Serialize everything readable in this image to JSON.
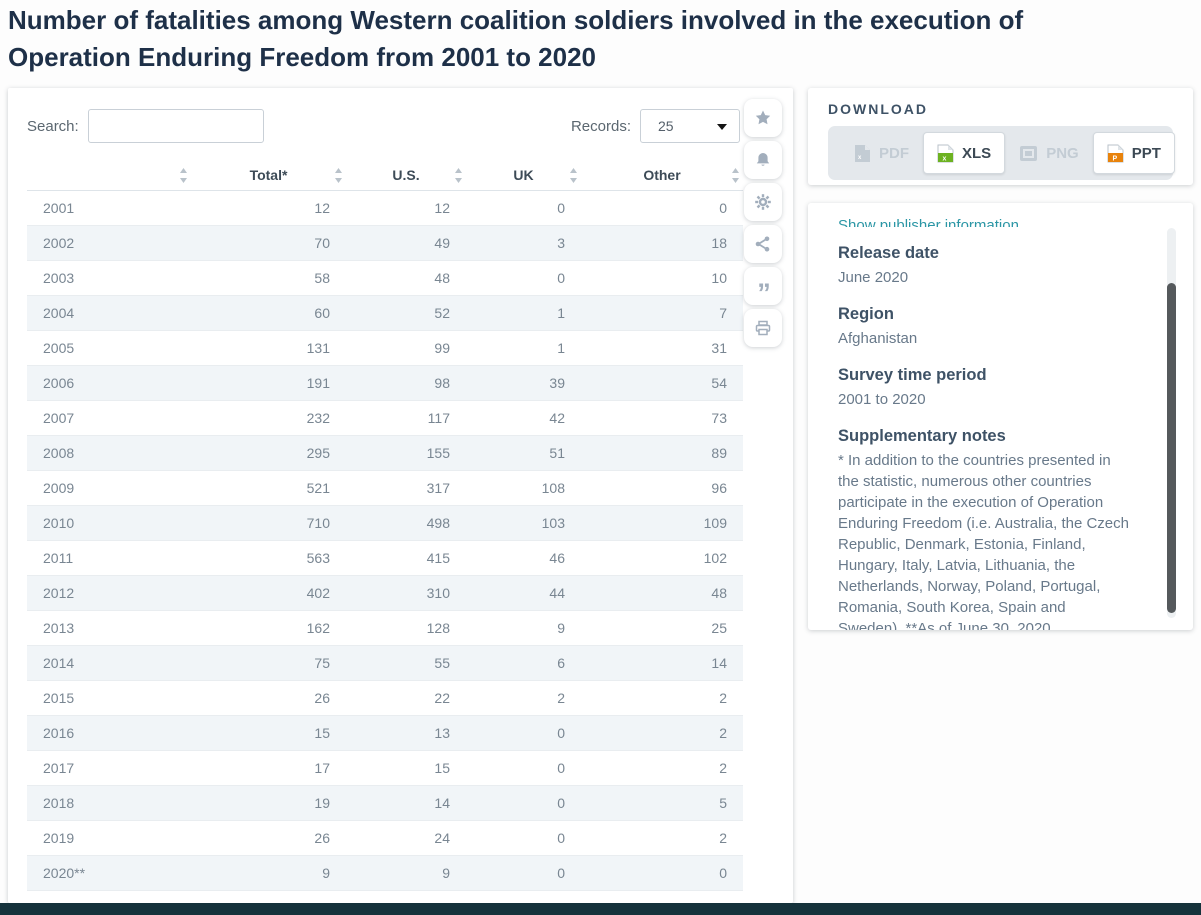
{
  "page": {
    "title": "Number of fatalities among Western coalition soldiers involved in the execution of Operation Enduring Freedom from 2001 to 2020"
  },
  "controls": {
    "search_label": "Search:",
    "search_value": "",
    "records_label": "Records:",
    "records_value": "25"
  },
  "table": {
    "columns": [
      "",
      "Total*",
      "U.S.",
      "UK",
      "Other"
    ],
    "rows": [
      {
        "year": "2001",
        "total": "12",
        "us": "12",
        "uk": "0",
        "other": "0"
      },
      {
        "year": "2002",
        "total": "70",
        "us": "49",
        "uk": "3",
        "other": "18"
      },
      {
        "year": "2003",
        "total": "58",
        "us": "48",
        "uk": "0",
        "other": "10"
      },
      {
        "year": "2004",
        "total": "60",
        "us": "52",
        "uk": "1",
        "other": "7"
      },
      {
        "year": "2005",
        "total": "131",
        "us": "99",
        "uk": "1",
        "other": "31"
      },
      {
        "year": "2006",
        "total": "191",
        "us": "98",
        "uk": "39",
        "other": "54"
      },
      {
        "year": "2007",
        "total": "232",
        "us": "117",
        "uk": "42",
        "other": "73"
      },
      {
        "year": "2008",
        "total": "295",
        "us": "155",
        "uk": "51",
        "other": "89"
      },
      {
        "year": "2009",
        "total": "521",
        "us": "317",
        "uk": "108",
        "other": "96"
      },
      {
        "year": "2010",
        "total": "710",
        "us": "498",
        "uk": "103",
        "other": "109"
      },
      {
        "year": "2011",
        "total": "563",
        "us": "415",
        "uk": "46",
        "other": "102"
      },
      {
        "year": "2012",
        "total": "402",
        "us": "310",
        "uk": "44",
        "other": "48"
      },
      {
        "year": "2013",
        "total": "162",
        "us": "128",
        "uk": "9",
        "other": "25"
      },
      {
        "year": "2014",
        "total": "75",
        "us": "55",
        "uk": "6",
        "other": "14"
      },
      {
        "year": "2015",
        "total": "26",
        "us": "22",
        "uk": "2",
        "other": "2"
      },
      {
        "year": "2016",
        "total": "15",
        "us": "13",
        "uk": "0",
        "other": "2"
      },
      {
        "year": "2017",
        "total": "17",
        "us": "15",
        "uk": "0",
        "other": "2"
      },
      {
        "year": "2018",
        "total": "19",
        "us": "14",
        "uk": "0",
        "other": "5"
      },
      {
        "year": "2019",
        "total": "26",
        "us": "24",
        "uk": "0",
        "other": "2"
      },
      {
        "year": "2020**",
        "total": "9",
        "us": "9",
        "uk": "0",
        "other": "0"
      }
    ]
  },
  "toolbar": {
    "icons": [
      "favorite",
      "notification",
      "settings",
      "share",
      "cite",
      "print"
    ]
  },
  "download": {
    "heading": "DOWNLOAD",
    "buttons": [
      {
        "label": "PDF",
        "enabled": false
      },
      {
        "label": "XLS",
        "enabled": true
      },
      {
        "label": "PNG",
        "enabled": false
      },
      {
        "label": "PPT",
        "enabled": true
      }
    ]
  },
  "details": {
    "publisher_link": "Show publisher information",
    "sections": [
      {
        "heading": "Release date",
        "text": "June 2020"
      },
      {
        "heading": "Region",
        "text": "Afghanistan"
      },
      {
        "heading": "Survey time period",
        "text": "2001 to 2020"
      },
      {
        "heading": "Supplementary notes",
        "text": "* In addition to the countries presented in the statistic, numerous other countries participate in the execution of Operation Enduring Freedom (i.e. Australia, the Czech Republic, Denmark, Estonia, Finland, Hungary, Italy, Latvia, Lithuania, the Netherlands, Norway, Poland, Portugal, Romania, South Korea, Spain and Sweden). **As of June 30, 2020."
      }
    ]
  },
  "colors": {
    "title": "#1e3048",
    "accent_teal": "#2b96a5",
    "row_stripe": "#f1f5f8",
    "xls_green": "#6db221",
    "ppt_orange": "#e8830c",
    "bottom_bar": "#15323b"
  }
}
